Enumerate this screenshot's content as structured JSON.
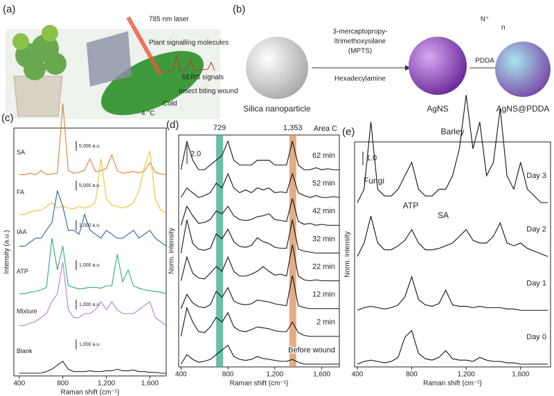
{
  "panels": {
    "a": {
      "label": "(a)",
      "laser": "785 nm laser",
      "molecules": "Plant signalling molecules",
      "signals": "SERS signals",
      "wound": "Insect biting wound",
      "cold": "Cold",
      "temperature": "4 °C"
    },
    "b": {
      "label": "(b)",
      "reagent_line1": "3-mercaptopropy-",
      "reagent_line2": "ltrimethoxysilane",
      "reagent_line3": "(MPTS)",
      "reagent2": "Hexadecylamine",
      "monomer_ion": "N⁺",
      "monomer_n": "n",
      "polymer": "PDDA",
      "start": "Silica nanoparticle",
      "middle": "AgNS",
      "end": "AgNS@PDDA"
    }
  },
  "chart_data": [
    {
      "panel_label": "(c)",
      "type": "line",
      "xlabel": "Raman shift (cm⁻¹)",
      "ylabel": "Intensity (a.u.)",
      "xlim": [
        350,
        1750
      ],
      "xticks": [
        400,
        800,
        {
          "value": 1200,
          "label": "1,200"
        },
        {
          "value": 1600,
          "label": "1,600"
        }
      ],
      "x": [
        400,
        450,
        500,
        550,
        600,
        650,
        700,
        750,
        800,
        850,
        900,
        950,
        1000,
        1050,
        1100,
        1150,
        1200,
        1250,
        1300,
        1350,
        1400,
        1450,
        1500,
        1550,
        1600,
        1650,
        1700,
        1750
      ],
      "series": [
        {
          "name": "SA",
          "color": "#e07b39",
          "scale_label": "5,000 a.u.",
          "values": [
            1,
            1,
            1.2,
            1,
            1.5,
            1,
            1.1,
            1.2,
            10,
            1.5,
            1.2,
            1.3,
            1.6,
            3,
            1.4,
            1.5,
            1.8,
            3.5,
            1.5,
            1.2,
            1.3,
            1.4,
            1.2,
            1.5,
            2.5,
            1.3,
            1.1,
            1
          ]
        },
        {
          "name": "FA",
          "color": "#e5c52e",
          "scale_label": "5,000 a.u.",
          "values": [
            1,
            1,
            1.3,
            1.5,
            1.5,
            2,
            2.5,
            1.8,
            2,
            1.8,
            1.7,
            2,
            1.8,
            2,
            2.5,
            8,
            3,
            2.2,
            2,
            1.8,
            2,
            2.5,
            4,
            7,
            9,
            3,
            1.5,
            1.2
          ]
        },
        {
          "name": "IAA",
          "color": "#2b5fa8",
          "scale_label": "1,000 a.u.",
          "values": [
            2,
            2,
            2.5,
            3,
            3,
            4,
            5,
            9,
            7,
            4,
            4,
            3.5,
            6,
            4,
            3.5,
            3,
            4,
            3.5,
            3,
            3,
            3.5,
            4,
            3,
            3.5,
            4,
            3,
            2.5,
            2
          ]
        },
        {
          "name": "ATP",
          "color": "#2fa77a",
          "scale_label": "1,000 a.u.",
          "values": [
            1,
            1,
            1.2,
            1.3,
            1.5,
            1.8,
            8,
            4,
            7,
            2,
            1.8,
            1.6,
            1.7,
            1.8,
            1.8,
            1.7,
            2,
            2,
            6,
            2.5,
            4,
            2,
            1.7,
            1.5,
            1.4,
            1.3,
            1.2,
            1
          ]
        },
        {
          "name": "Mixture",
          "color": "#b57ccf",
          "scale_label": "1,000 a.u.",
          "values": [
            2,
            2,
            2.3,
            2.5,
            3,
            3.5,
            5,
            6,
            10,
            4,
            3,
            3,
            3.5,
            3.5,
            4,
            5,
            4,
            5,
            4,
            3.5,
            3.5,
            3.5,
            4,
            4.5,
            5,
            3,
            2.5,
            2
          ]
        },
        {
          "name": "Blank",
          "color": "#222222",
          "scale_label": "1,000 a.u.",
          "values": [
            1,
            1,
            1,
            1,
            1,
            1.2,
            1.5,
            2,
            2.5,
            1.5,
            1.2,
            1.2,
            1.2,
            1.3,
            1.2,
            1.2,
            1.3,
            1.3,
            1.5,
            1.3,
            1.3,
            1.4,
            1.2,
            1.2,
            1.1,
            1.1,
            1,
            1
          ]
        }
      ]
    },
    {
      "panel_label": "(d)",
      "type": "line",
      "xlabel": "Raman shift (cm⁻¹)",
      "ylabel": "Norm. intensity",
      "annotation": "Area C",
      "scale_bar": {
        "value": 2,
        "label": "2.0"
      },
      "highlights": [
        {
          "value": 729,
          "color": "#3aa98a"
        },
        {
          "value": 1353,
          "label": "1,353",
          "color": "#d9905a"
        }
      ],
      "xlim": [
        380,
        1750
      ],
      "xticks": [
        400,
        800,
        {
          "value": 1200,
          "label": "1,200"
        },
        {
          "value": 1600,
          "label": "1,600"
        }
      ],
      "x": [
        400,
        450,
        500,
        550,
        600,
        650,
        700,
        750,
        800,
        850,
        900,
        950,
        1000,
        1050,
        1100,
        1150,
        1200,
        1250,
        1300,
        1350,
        1400,
        1450,
        1500,
        1550,
        1600,
        1650,
        1700,
        1750
      ],
      "series": [
        {
          "name": "62 min",
          "color": "#111111",
          "values": [
            3,
            6,
            4,
            3,
            3,
            3.5,
            4,
            4.5,
            6,
            4,
            3.5,
            3.5,
            3.5,
            4,
            4,
            4,
            3.5,
            3.5,
            3.5,
            6,
            3.5,
            3,
            3,
            3.2,
            3,
            3.1,
            3,
            3
          ]
        },
        {
          "name": "52 min",
          "color": "#111111",
          "values": [
            3,
            4,
            3.5,
            3,
            3.2,
            3.5,
            4.5,
            4,
            5.5,
            4,
            3.5,
            3.8,
            3.5,
            4,
            3.8,
            4,
            3.5,
            3.6,
            3.5,
            5.5,
            3.5,
            3.2,
            3,
            3.2,
            3,
            3,
            3.1,
            3
          ]
        },
        {
          "name": "42 min",
          "color": "#111111",
          "values": [
            3,
            5,
            4,
            3.2,
            3.3,
            3.6,
            4.5,
            4.2,
            5,
            4,
            3.6,
            3.5,
            3.6,
            3.9,
            4,
            4.2,
            3.6,
            3.5,
            3.4,
            5.8,
            3.4,
            3.1,
            3.2,
            3,
            3.1,
            3,
            3,
            3
          ]
        },
        {
          "name": "32 min",
          "color": "#111111",
          "values": [
            3,
            6.5,
            4,
            3.4,
            3.3,
            3.5,
            5,
            4.5,
            5.5,
            4.2,
            3.7,
            3.6,
            3.8,
            4.6,
            4.2,
            4,
            3.6,
            3.5,
            3.5,
            6.5,
            3.4,
            3.2,
            3.1,
            3,
            3,
            3,
            3,
            3
          ]
        },
        {
          "name": "22 min",
          "color": "#111111",
          "values": [
            3,
            5.5,
            3.8,
            3.3,
            3.2,
            3.8,
            4.5,
            4,
            5.5,
            4,
            3.5,
            3.5,
            3.7,
            4,
            4.5,
            4,
            3.6,
            3.7,
            3.5,
            6.8,
            3.5,
            3.1,
            3,
            3.1,
            3,
            3,
            3,
            3
          ]
        },
        {
          "name": "12 min",
          "color": "#111111",
          "values": [
            3,
            4.5,
            3.6,
            3.2,
            3.1,
            3.4,
            4.8,
            4.2,
            5.2,
            3.8,
            3.5,
            3.4,
            3.5,
            3.9,
            3.8,
            3.7,
            3.5,
            3.4,
            3.3,
            6.5,
            3.3,
            3.1,
            3,
            3,
            3,
            3,
            3,
            3
          ]
        },
        {
          "name": "2 min",
          "color": "#111111",
          "values": [
            3,
            6,
            4.5,
            3.5,
            3.4,
            4,
            5,
            4.5,
            5.5,
            4,
            3.6,
            3.5,
            3.7,
            4,
            3.9,
            3.8,
            3.6,
            3.5,
            3.5,
            4.5,
            3.4,
            3.1,
            3,
            3,
            3,
            3,
            3,
            3
          ]
        },
        {
          "name": "Before wound",
          "color": "#111111",
          "values": [
            3,
            4,
            3.5,
            3.2,
            3.3,
            3.5,
            4,
            4.5,
            5,
            3.8,
            3.5,
            3.4,
            3.5,
            3.8,
            3.6,
            3.5,
            3.4,
            3.3,
            3.3,
            3.5,
            3.2,
            3,
            3,
            3,
            3,
            3,
            3,
            3
          ]
        }
      ]
    },
    {
      "panel_label": "(e)",
      "type": "line",
      "title": "Barley",
      "xlabel": "Raman shift (cm⁻¹)",
      "ylabel": "Norm. intensity",
      "scale_bar": {
        "value": 1,
        "label": "1.0"
      },
      "annotations": [
        {
          "text": "Fungi",
          "color": "#2b7bbf"
        },
        {
          "text": "ATP",
          "color": "#2fa77a"
        },
        {
          "text": "SA",
          "color": "#e07b39"
        }
      ],
      "xlim": [
        380,
        1820
      ],
      "xticks": [
        400,
        800,
        {
          "value": 1200,
          "label": "1,200"
        },
        {
          "value": 1600,
          "label": "1,600"
        }
      ],
      "x": [
        400,
        450,
        500,
        550,
        600,
        650,
        700,
        750,
        800,
        850,
        900,
        950,
        1000,
        1050,
        1100,
        1150,
        1200,
        1250,
        1300,
        1350,
        1400,
        1450,
        1500,
        1550,
        1600,
        1650,
        1700,
        1750,
        1800
      ],
      "series": [
        {
          "name": "Day 3",
          "color": "#111111",
          "values": [
            2,
            3,
            8,
            3,
            2.5,
            2.5,
            3,
            4,
            5,
            3,
            2.5,
            2.5,
            3,
            3,
            4,
            6,
            10,
            6,
            8,
            4,
            5,
            9,
            4,
            3,
            5,
            3,
            2.5,
            2,
            2
          ]
        },
        {
          "name": "Day 2",
          "color": "#111111",
          "values": [
            2,
            3,
            5,
            3,
            2.5,
            2.5,
            2.8,
            3.2,
            4,
            3,
            2.5,
            2.5,
            2.6,
            2.8,
            3,
            3.5,
            4,
            3.2,
            3,
            3,
            3.5,
            4.5,
            3,
            2.8,
            3,
            2.6,
            2.4,
            2.2,
            2
          ]
        },
        {
          "name": "Day 1",
          "color": "#111111",
          "values": [
            2,
            2.2,
            2.3,
            2.2,
            2.1,
            2.2,
            2.4,
            3,
            4.5,
            2.8,
            2.4,
            2.3,
            2.5,
            3.5,
            2.4,
            2.3,
            2.3,
            2.2,
            2.3,
            2.2,
            2.2,
            2.2,
            2.1,
            2.1,
            2,
            2,
            2,
            2,
            2
          ]
        },
        {
          "name": "Day 0",
          "color": "#111111",
          "values": [
            2,
            2.2,
            2.3,
            2.2,
            2.1,
            2.2,
            2.5,
            4,
            4.5,
            2.8,
            2.4,
            2.3,
            2.5,
            3,
            2.4,
            2.3,
            2.3,
            2.2,
            2.5,
            2.3,
            2.2,
            2.2,
            2.1,
            2.1,
            2,
            2,
            2,
            2,
            2
          ]
        }
      ]
    }
  ]
}
